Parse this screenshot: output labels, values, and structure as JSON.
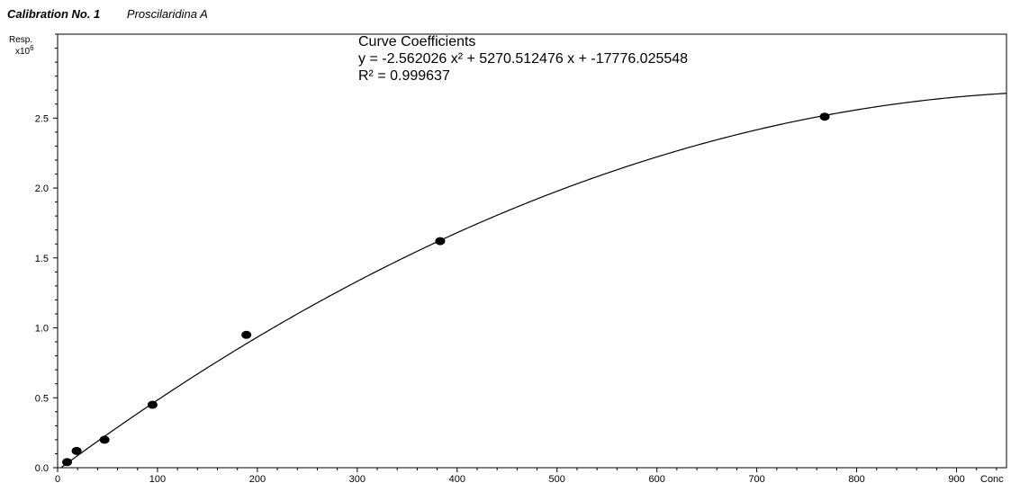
{
  "header": {
    "calibration_label": "Calibration No. 1",
    "compound_name": "Proscilaridina A"
  },
  "chart_data": {
    "type": "scatter",
    "title": "",
    "xlabel": "Conc",
    "ylabel": "Resp.",
    "y_multiplier_label": "x10",
    "y_multiplier_exponent": "6",
    "xlim": [
      0,
      950
    ],
    "ylim": [
      0,
      3.1
    ],
    "x_ticks": [
      0,
      100,
      200,
      300,
      400,
      500,
      600,
      700,
      800,
      900
    ],
    "x_tick_labels": [
      "0",
      "100",
      "200",
      "300",
      "400",
      "500",
      "600",
      "700",
      "800",
      "900"
    ],
    "y_ticks": [
      0.0,
      0.5,
      1.0,
      1.5,
      2.0,
      2.5
    ],
    "y_tick_labels": [
      "0.0",
      "0.5",
      "1.0",
      "1.5",
      "2.0",
      "2.5"
    ],
    "grid": false,
    "points": [
      {
        "x": 9.5,
        "y": 0.04
      },
      {
        "x": 19,
        "y": 0.12
      },
      {
        "x": 47,
        "y": 0.2
      },
      {
        "x": 95,
        "y": 0.45
      },
      {
        "x": 189,
        "y": 0.95
      },
      {
        "x": 383,
        "y": 1.62
      },
      {
        "x": 768,
        "y": 2.51
      }
    ],
    "fit": {
      "type": "quadratic",
      "a": -2.562026,
      "b": 5270.512476,
      "c": -17776.025548,
      "scale": 1000000
    },
    "annotation": {
      "title": "Curve Coefficients",
      "equation": "y = -2.562026 x² + 5270.512476 x + -17776.025548",
      "r_squared": "R² = 0.999637"
    },
    "colors": {
      "points": "#000000",
      "curve": "#000000",
      "axes": "#000000"
    }
  }
}
